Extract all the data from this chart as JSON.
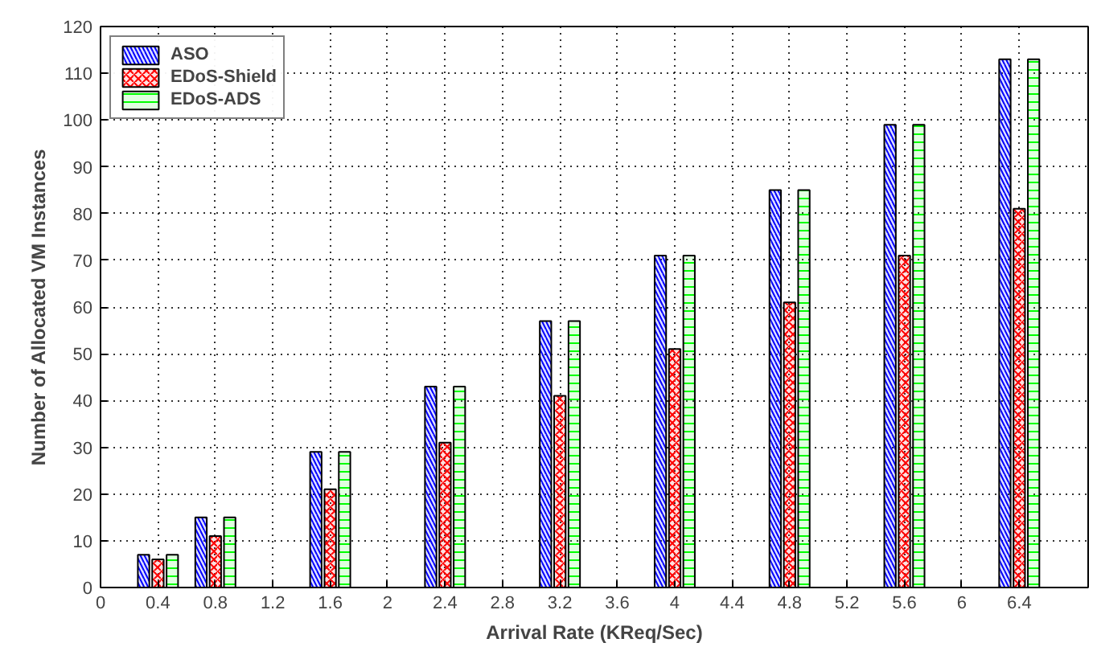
{
  "chart_data": {
    "type": "bar",
    "xlabel": "Arrival Rate (KReq/Sec)",
    "ylabel": "Number of Allocated VM Instances",
    "x": [
      0.4,
      0.8,
      1.6,
      2.4,
      3.2,
      4,
      4.8,
      5.6,
      6.4
    ],
    "series": [
      {
        "name": "ASO",
        "color": "#0000ff",
        "values": [
          7,
          15,
          29,
          43,
          57,
          71,
          85,
          99,
          113
        ]
      },
      {
        "name": "EDoS-Shield",
        "color": "#ff0000",
        "values": [
          6,
          11,
          21,
          31,
          41,
          51,
          61,
          71,
          81
        ]
      },
      {
        "name": "EDoS-ADS",
        "color": "#00ff00",
        "values": [
          7,
          15,
          29,
          43,
          57,
          71,
          85,
          99,
          113
        ]
      }
    ],
    "xlim": [
      0,
      6.88
    ],
    "xticks": [
      0,
      0.4,
      0.8,
      1.2,
      1.6,
      2,
      2.4,
      2.8,
      3.2,
      3.6,
      4,
      4.4,
      4.8,
      5.2,
      5.6,
      6,
      6.4
    ],
    "ylim": [
      0,
      120
    ],
    "yticks": [
      0,
      10,
      20,
      30,
      40,
      50,
      60,
      70,
      80,
      90,
      100,
      110,
      120
    ],
    "grid": true,
    "legend": "top left"
  }
}
